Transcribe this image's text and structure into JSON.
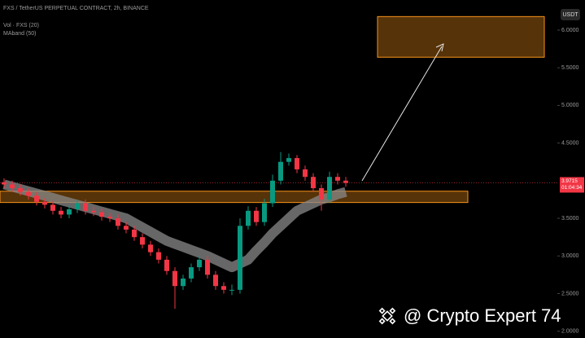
{
  "chart_data": {
    "type": "candlestick",
    "title": "FXS / TetherUS PERPETUAL CONTRACT, 2h, BINANCE",
    "indicators": [
      "Vol · FXS (20)",
      "MAband (50)"
    ],
    "axis_unit": "USDT",
    "ylim": [
      1.91,
      6.4
    ],
    "yticks": [
      {
        "value": 2,
        "label": "2.0000"
      },
      {
        "value": 2.5,
        "label": "2.5000"
      },
      {
        "value": 3,
        "label": "3.0000"
      },
      {
        "value": 3.5,
        "label": "3.5000"
      },
      {
        "value": 4.5,
        "label": "4.5000"
      },
      {
        "value": 5,
        "label": "5.0000"
      },
      {
        "value": 5.5,
        "label": "5.5000"
      },
      {
        "value": 6,
        "label": "6.0000"
      }
    ],
    "up_color": "#089981",
    "down_color": "#f23645",
    "open": [
      3.98,
      3.95,
      3.9,
      3.85,
      3.8,
      3.72,
      3.68,
      3.6,
      3.55,
      3.62,
      3.7,
      3.6,
      3.58,
      3.52,
      3.5,
      3.4,
      3.35,
      3.25,
      3.15,
      3.05,
      2.95,
      2.8,
      2.6,
      2.7,
      2.85,
      2.95,
      2.75,
      2.6,
      2.55,
      2.55,
      3.4,
      3.6,
      3.45,
      3.7,
      4.0,
      4.25,
      4.3,
      4.15,
      4.05,
      3.9,
      3.75,
      4.05,
      4.0
    ],
    "high": [
      4.03,
      4.0,
      3.95,
      3.9,
      3.85,
      3.77,
      3.73,
      3.65,
      3.67,
      3.75,
      3.75,
      3.65,
      3.63,
      3.57,
      3.55,
      3.45,
      3.4,
      3.3,
      3.2,
      3.1,
      3.0,
      2.85,
      2.75,
      2.9,
      3.0,
      3.0,
      2.8,
      2.65,
      2.62,
      3.5,
      3.66,
      3.65,
      3.76,
      4.08,
      4.38,
      4.36,
      4.34,
      4.2,
      4.1,
      3.95,
      4.12,
      4.1,
      4.05
    ],
    "low": [
      3.9,
      3.85,
      3.8,
      3.75,
      3.67,
      3.63,
      3.55,
      3.5,
      3.5,
      3.57,
      3.55,
      3.53,
      3.47,
      3.45,
      3.35,
      3.3,
      3.2,
      3.1,
      3.0,
      2.9,
      2.75,
      2.3,
      2.55,
      2.65,
      2.8,
      2.7,
      2.55,
      2.5,
      2.48,
      2.5,
      3.35,
      3.4,
      3.4,
      3.65,
      3.95,
      4.2,
      4.1,
      4.0,
      3.85,
      3.6,
      3.7,
      3.95,
      3.92
    ],
    "close": [
      3.95,
      3.9,
      3.85,
      3.8,
      3.72,
      3.68,
      3.6,
      3.55,
      3.62,
      3.7,
      3.6,
      3.58,
      3.52,
      3.5,
      3.4,
      3.35,
      3.25,
      3.15,
      3.05,
      2.95,
      2.8,
      2.6,
      2.7,
      2.85,
      2.95,
      2.75,
      2.6,
      2.55,
      2.55,
      3.4,
      3.6,
      3.45,
      3.7,
      4.0,
      4.25,
      4.3,
      4.15,
      4.05,
      3.9,
      3.75,
      4.05,
      4.0,
      3.97
    ],
    "ma_band": [
      3.95,
      3.92,
      3.89,
      3.86,
      3.83,
      3.8,
      3.77,
      3.74,
      3.71,
      3.68,
      3.65,
      3.62,
      3.59,
      3.56,
      3.53,
      3.5,
      3.44,
      3.38,
      3.32,
      3.26,
      3.2,
      3.16,
      3.12,
      3.08,
      3.04,
      3.0,
      2.95,
      2.9,
      2.85,
      2.9,
      2.95,
      3.07,
      3.18,
      3.3,
      3.4,
      3.5,
      3.6,
      3.65,
      3.7,
      3.75,
      3.78,
      3.82,
      3.85
    ],
    "ma_color": "#8a8a8a",
    "zones": [
      {
        "low": 3.71,
        "high": 3.86
      },
      {
        "low": 5.64,
        "high": 6.18
      }
    ],
    "zone_color": "#f7931a",
    "last_price": 3.9715,
    "countdown": "01:04:34",
    "watermark": "@ Crypto Expert 74"
  }
}
